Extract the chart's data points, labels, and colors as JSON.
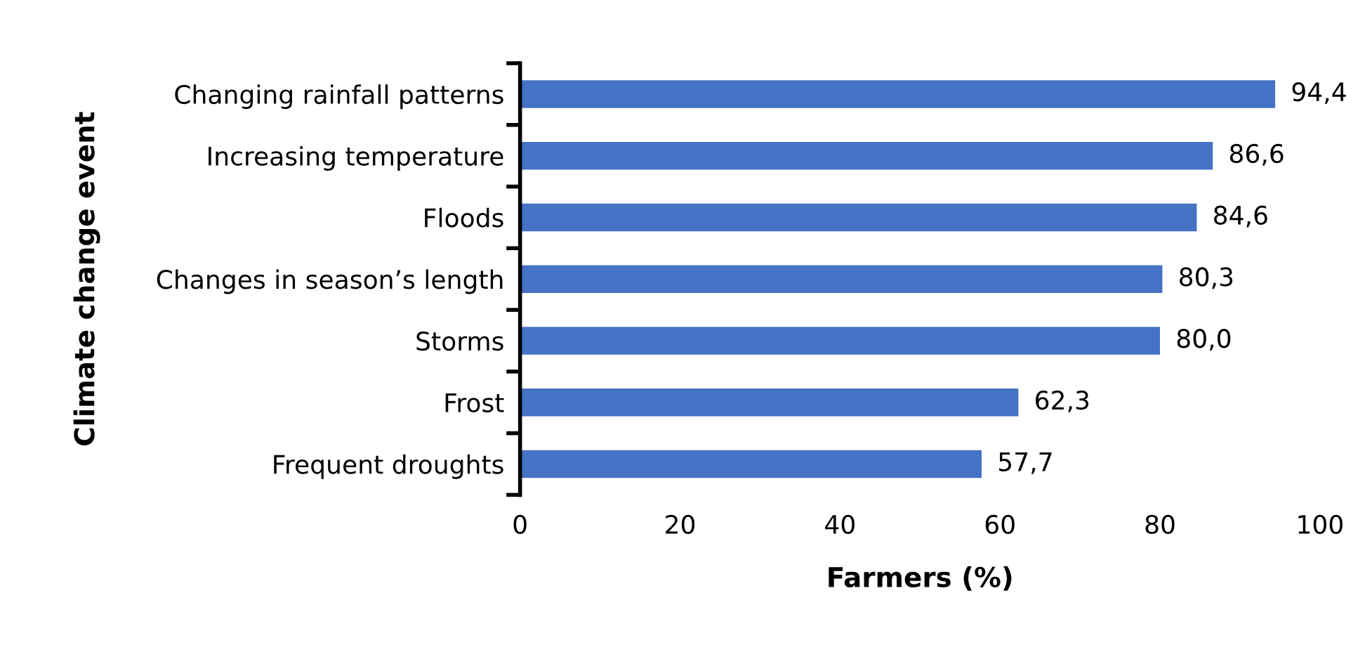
{
  "chart_data": {
    "type": "bar",
    "orientation": "horizontal",
    "xlabel": "Farmers (%)",
    "ylabel": "Climate change event",
    "categories": [
      "Changing rainfall patterns",
      "Increasing temperature",
      "Floods",
      "Changes in season’s length",
      "Storms",
      "Frost",
      "Frequent droughts"
    ],
    "values": [
      94.4,
      86.6,
      84.6,
      80.3,
      80.0,
      62.3,
      57.7
    ],
    "value_labels": [
      "94,4",
      "86,6",
      "84,6",
      "80,3",
      "80,0",
      "62,3",
      "57,7"
    ],
    "color": "#4472c4",
    "xlim": [
      0,
      100
    ],
    "xticks": [
      0,
      20,
      40,
      60,
      80,
      100
    ],
    "grid": false,
    "legend": false
  }
}
